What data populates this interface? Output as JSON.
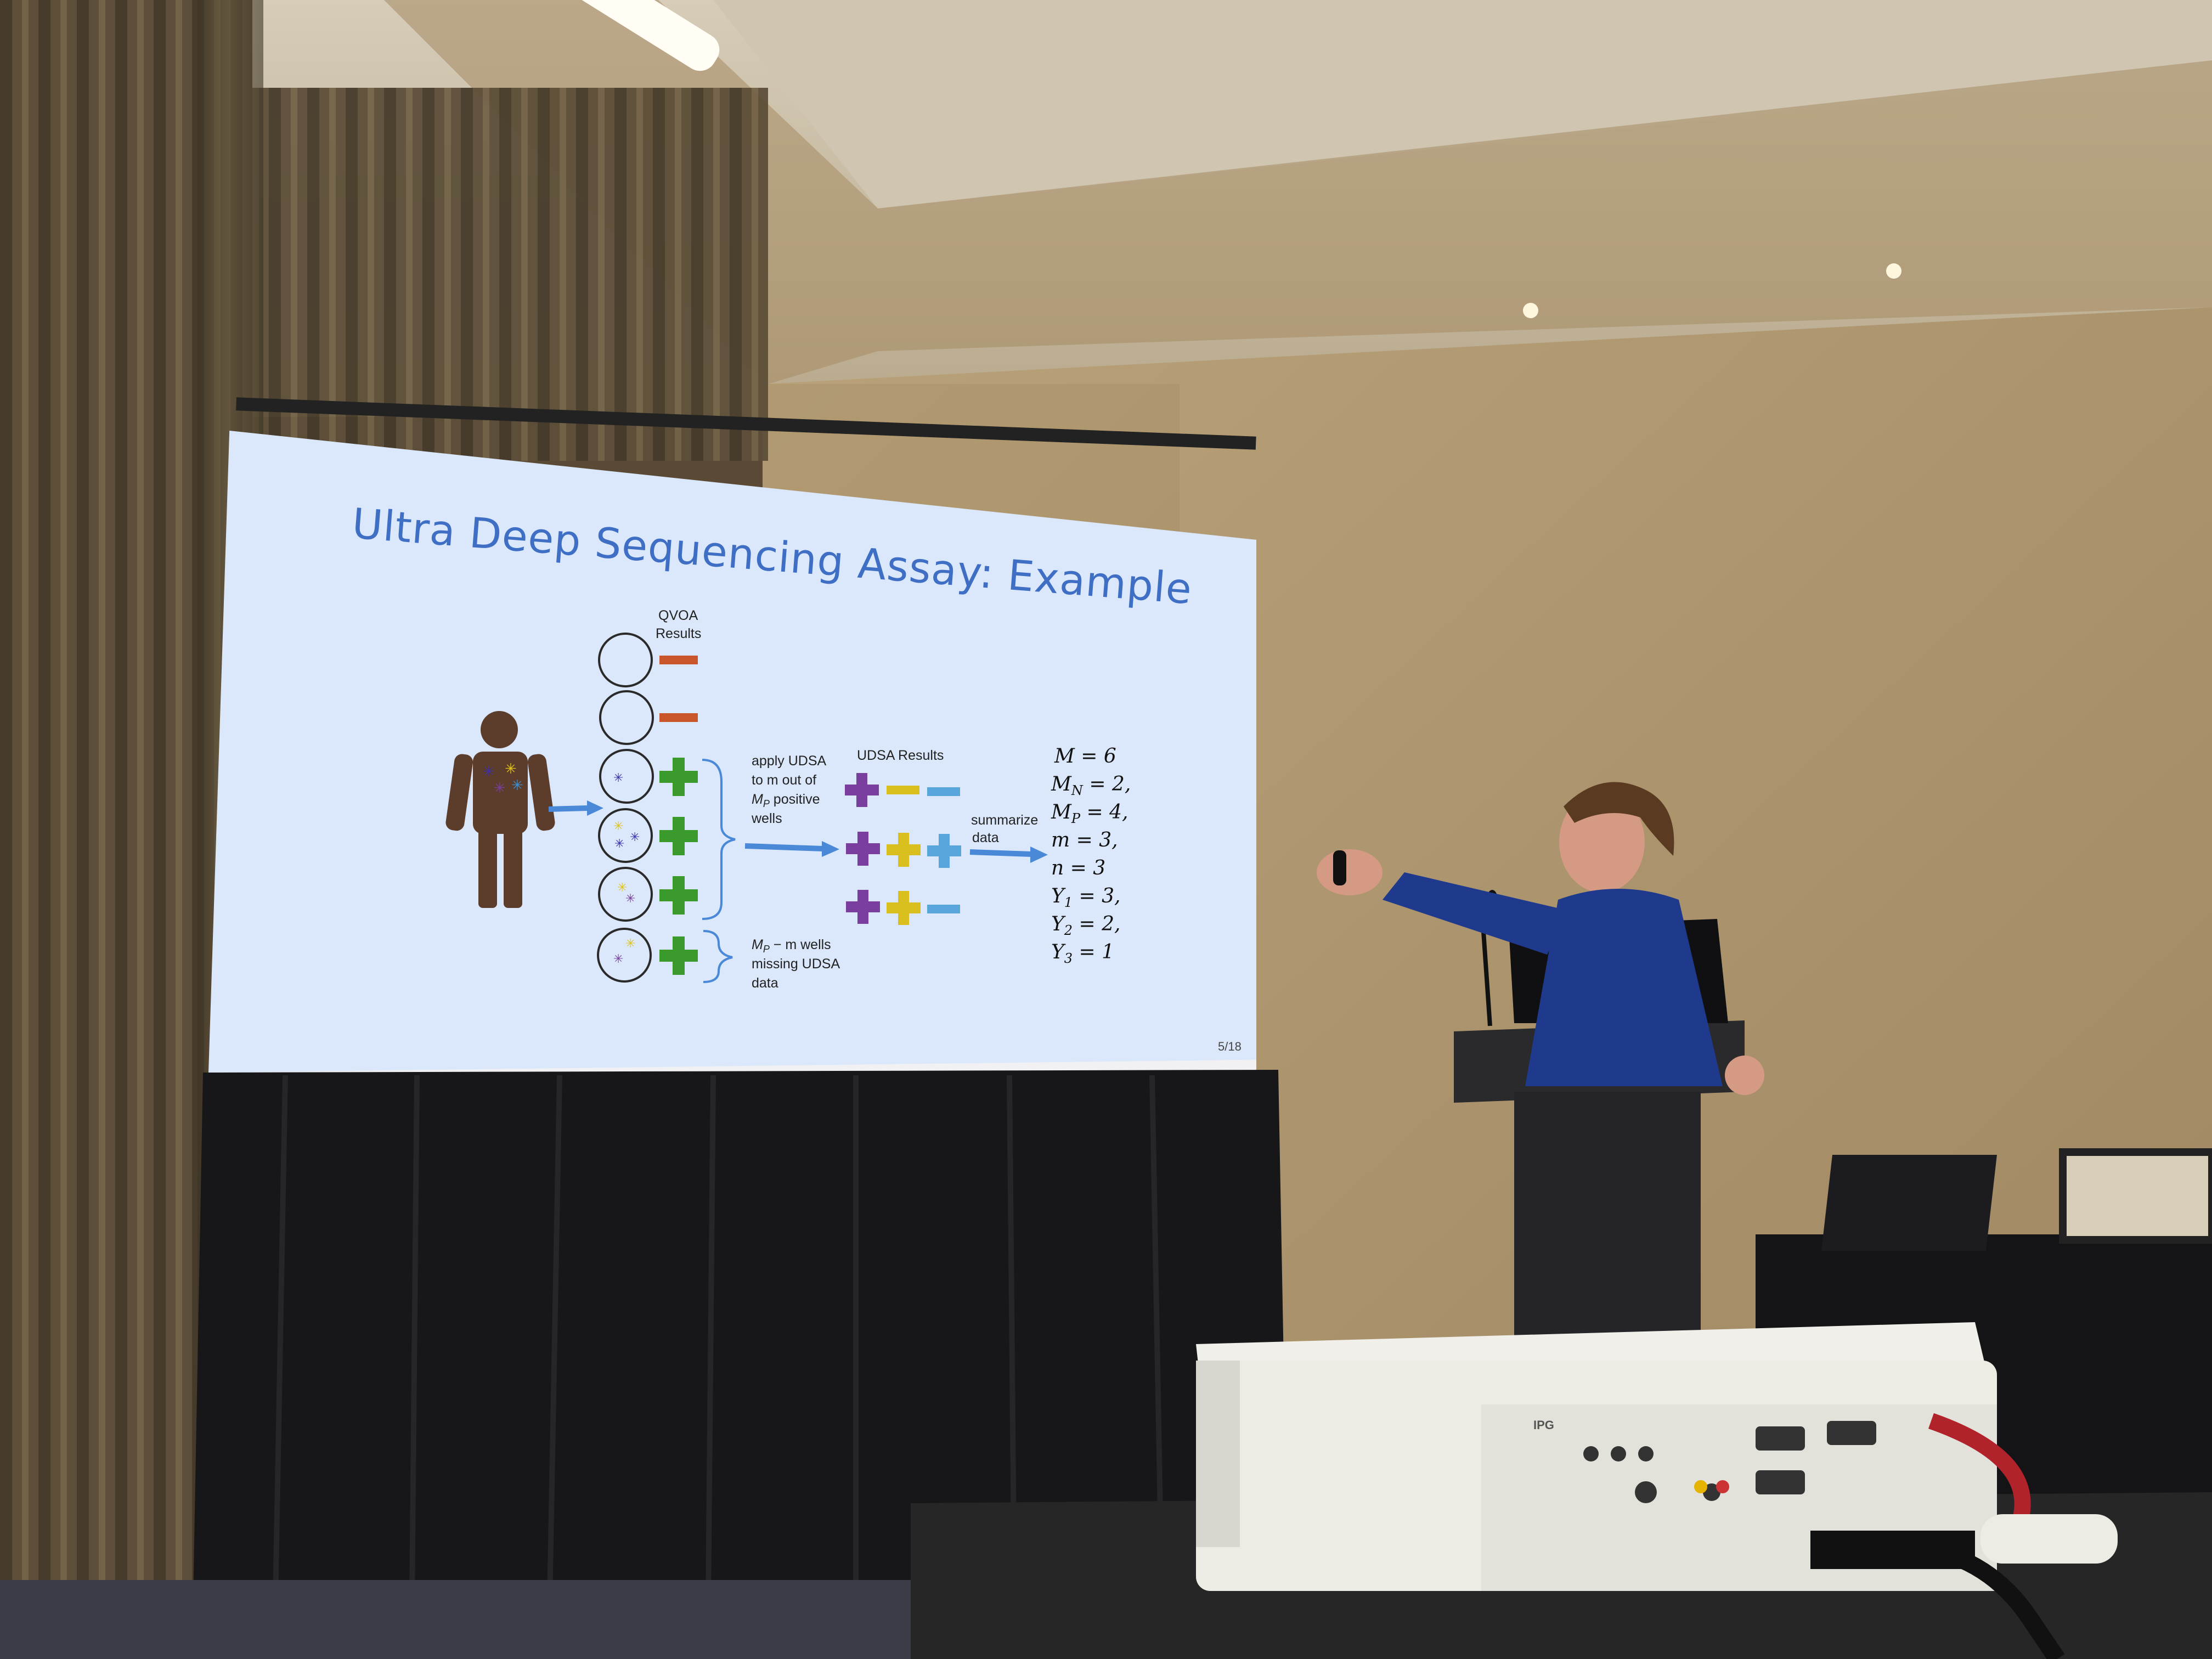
{
  "slide": {
    "title": "Ultra Deep Sequencing Assay: Example",
    "qvoa_label_line1": "QVOA",
    "qvoa_label_line2": "Results",
    "apply_line1": "apply UDSA",
    "apply_line2": "to m out of",
    "apply_line3": "M",
    "apply_line3_sub": "P",
    "apply_line3_rest": " positive",
    "apply_line4": "wells",
    "udsa_results": "UDSA Results",
    "summarize_line1": "summarize",
    "summarize_line2": "data",
    "missing_line1": "M",
    "missing_line1_sub": "P",
    "missing_line1_rest": " − m wells",
    "missing_line2": "missing UDSA",
    "missing_line3": "data",
    "eq": [
      {
        "main": "M = 6",
        "color": "#111111"
      },
      {
        "main": "M",
        "sub": "N",
        "rest": " = 2,",
        "color": "#111111"
      },
      {
        "main": "M",
        "sub": "P",
        "rest": " = 4,",
        "color": "#111111"
      },
      {
        "main": "m = 3,",
        "color": "#111111"
      },
      {
        "main": "n = 3",
        "color": "#111111"
      },
      {
        "main": "Y",
        "sub": "1",
        "rest": " = 3,",
        "color": "#111111"
      },
      {
        "main": "Y",
        "sub": "2",
        "rest": " = 2,",
        "color": "#c9a800"
      },
      {
        "main": "Y",
        "sub": "3",
        "rest": " = 1",
        "color": "#3b8fd4"
      }
    ],
    "page_number": "5/18",
    "colors": {
      "title": "#3f6fc4",
      "minus": "#c9552a",
      "plus_green": "#3a9a2c",
      "plus_purple": "#7a3f9e",
      "plus_yellow": "#d9bf1d",
      "plus_blue": "#58a6dc",
      "arrow": "#4a88d8",
      "slide_bg": "#dbe8fb"
    }
  },
  "projector": {
    "brand": "IPG"
  }
}
